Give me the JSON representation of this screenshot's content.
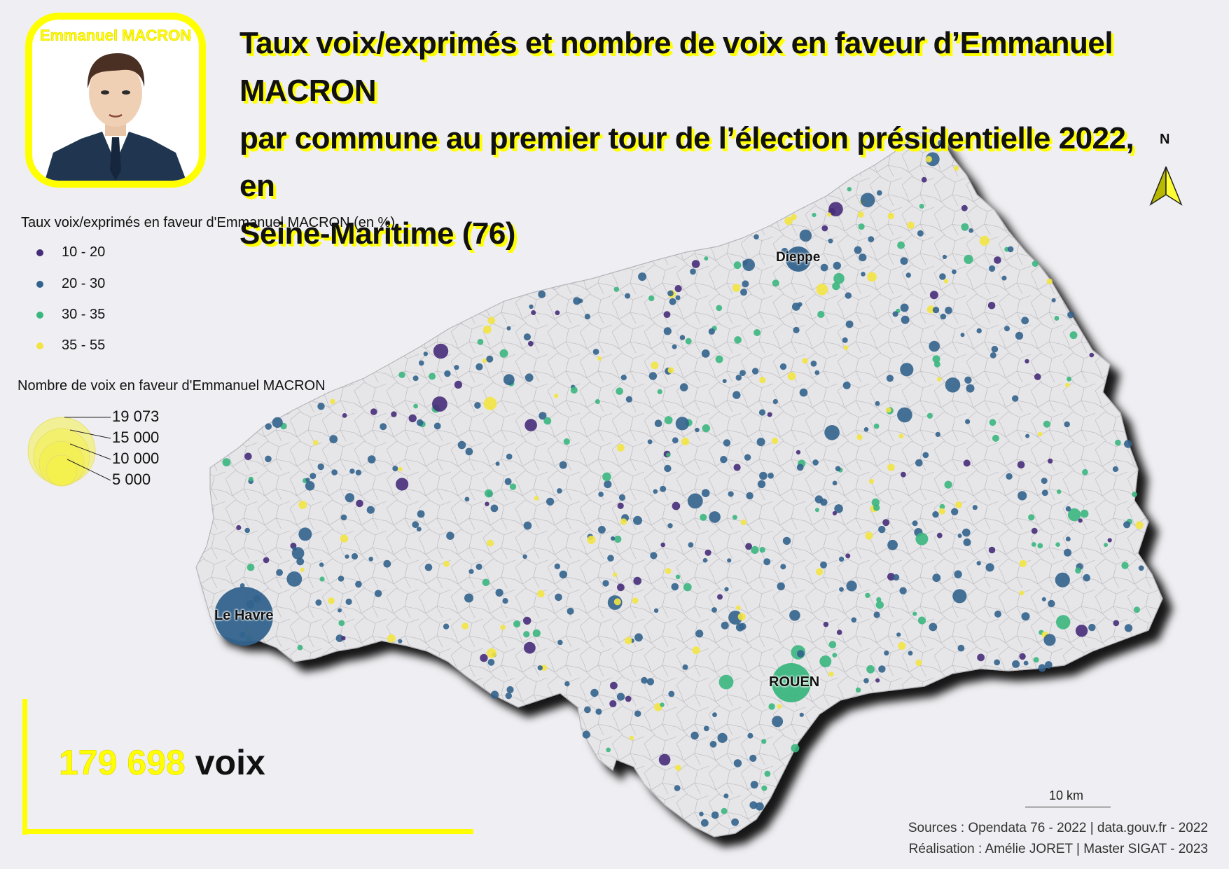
{
  "portrait": {
    "name": "Emmanuel MACRON",
    "frame_color": "#ffff00",
    "icon": "portrait-illustration"
  },
  "title": {
    "line1": "Taux voix/exprimés et nombre de voix en faveur d’Emmanuel MACRON",
    "line2": "par commune au premier tour de l’élection présidentielle 2022, en",
    "line3": "Seine-Maritime (76)"
  },
  "legend": {
    "rate_title": "Taux voix/exprimés en faveur d'Emmanuel MACRON (en %)",
    "rate_classes": [
      {
        "label": "10 - 20",
        "color": "#472c7a"
      },
      {
        "label": "20 - 30",
        "color": "#33638d"
      },
      {
        "label": "30 - 35",
        "color": "#3bb67f"
      },
      {
        "label": "35 - 55",
        "color": "#f2e443"
      }
    ],
    "size_title": "Nombre de voix en faveur d'Emmanuel MACRON",
    "size_classes": [
      {
        "label": "19 073",
        "value": 19073
      },
      {
        "label": "15 000",
        "value": 15000
      },
      {
        "label": "10 000",
        "value": 10000
      },
      {
        "label": "5 000",
        "value": 5000
      }
    ],
    "size_color": "#f4f04a"
  },
  "cities": [
    {
      "name": "Dieppe",
      "rate_class": "20 - 30"
    },
    {
      "name": "Le Havre",
      "rate_class": "20 - 30"
    },
    {
      "name": "ROUEN",
      "rate_class": "30 - 35"
    }
  ],
  "total": {
    "number": "179 698",
    "unit": "voix"
  },
  "north_arrow": {
    "label": "N",
    "icon": "north-arrow-icon"
  },
  "scale": {
    "label": "10 km"
  },
  "sources": {
    "line1": "Sources : Opendata 76 - 2022 | data.gouv.fr - 2022",
    "line2": "Réalisation : Amélie JORET  | Master SIGAT - 2023"
  },
  "colors": {
    "accent": "#ffff00",
    "land": "#e6e6e8",
    "background": "#efeff3"
  }
}
